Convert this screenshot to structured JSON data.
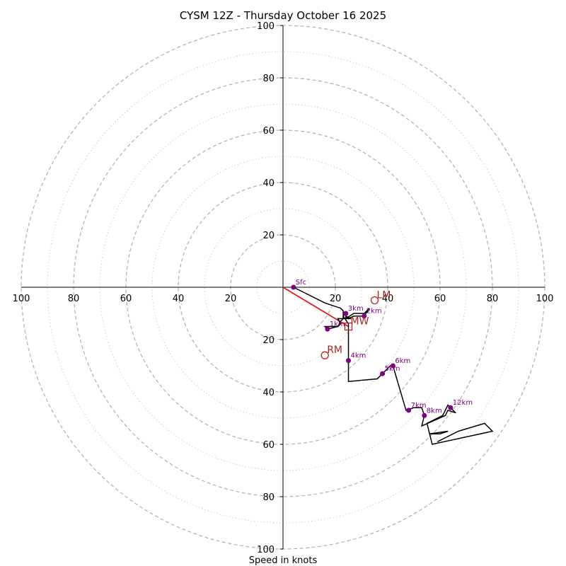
{
  "chart_data": {
    "type": "hodograph",
    "title": "CYSM 12Z - Thursday October 16 2025",
    "xlabel": "Speed in knots",
    "range": [
      -100,
      100
    ],
    "tick_values": [
      100,
      80,
      60,
      40,
      20
    ],
    "dashed_rings": [
      20,
      40,
      60,
      80,
      100
    ],
    "dotted_rings": [
      10,
      30,
      50,
      70,
      90
    ],
    "colors": {
      "trace": "#000000",
      "height_marker": "#800080",
      "motion": "#b22222",
      "shear_vector": "#e31a1c",
      "ring_dashed": "#b0b0b0",
      "ring_dotted": "#cccccc"
    },
    "trace": [
      [
        4,
        0
      ],
      [
        16,
        -6
      ],
      [
        22,
        -8
      ],
      [
        23,
        -9
      ],
      [
        23,
        -12
      ],
      [
        21,
        -12
      ],
      [
        22,
        -14
      ],
      [
        21,
        -15
      ],
      [
        17,
        -16
      ],
      [
        16,
        -15
      ],
      [
        21,
        -15
      ],
      [
        22,
        -13
      ],
      [
        23,
        -12
      ],
      [
        26,
        -12
      ],
      [
        24,
        -11
      ],
      [
        25,
        -12
      ],
      [
        27,
        -11
      ],
      [
        31,
        -11
      ],
      [
        33,
        -8
      ],
      [
        31,
        -10
      ],
      [
        27,
        -10
      ],
      [
        24,
        -12
      ],
      [
        24,
        -10
      ],
      [
        23,
        -11
      ],
      [
        25,
        -14
      ],
      [
        25,
        -28
      ],
      [
        25,
        -36
      ],
      [
        36,
        -35
      ],
      [
        38,
        -33
      ],
      [
        41,
        -30
      ],
      [
        42,
        -30
      ],
      [
        47,
        -47
      ],
      [
        50,
        -46
      ],
      [
        53,
        -46
      ],
      [
        54,
        -49
      ],
      [
        53,
        -53
      ],
      [
        62,
        -49
      ],
      [
        63,
        -47
      ],
      [
        66,
        -48
      ],
      [
        63,
        -45
      ],
      [
        61,
        -49
      ],
      [
        55,
        -52
      ],
      [
        56,
        -56
      ],
      [
        60,
        -56
      ],
      [
        63,
        -55
      ],
      [
        56,
        -56
      ],
      [
        57,
        -60
      ],
      [
        80,
        -55
      ],
      [
        77,
        -52
      ],
      [
        67,
        -55
      ],
      [
        59,
        -59
      ]
    ],
    "height_markers": [
      {
        "label": "Sfc",
        "x": 4,
        "y": 0
      },
      {
        "label": "1km",
        "x": 17,
        "y": -16
      },
      {
        "label": "2km",
        "x": 31,
        "y": -11
      },
      {
        "label": "3km",
        "x": 24,
        "y": -10
      },
      {
        "label": "4km",
        "x": 25,
        "y": -28
      },
      {
        "label": "5km",
        "x": 38,
        "y": -33
      },
      {
        "label": "6km",
        "x": 42,
        "y": -30
      },
      {
        "label": "7km",
        "x": 48,
        "y": -47
      },
      {
        "label": "8km",
        "x": 54,
        "y": -49
      },
      {
        "label": "12km",
        "x": 64,
        "y": -46
      }
    ],
    "storm_motion": [
      {
        "label": "LM",
        "x": 35,
        "y": -5,
        "marker": "circle"
      },
      {
        "label": "MW",
        "x": 25,
        "y": -15,
        "marker": "square"
      },
      {
        "label": "RM",
        "x": 16,
        "y": -26,
        "marker": "circle"
      }
    ],
    "shear_vector": {
      "from": [
        0,
        0
      ],
      "to": [
        25,
        -15
      ]
    }
  }
}
